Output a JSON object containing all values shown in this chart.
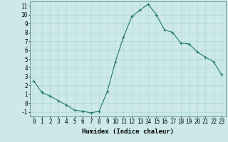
{
  "x": [
    0,
    1,
    2,
    3,
    4,
    5,
    6,
    7,
    8,
    9,
    10,
    11,
    12,
    13,
    14,
    15,
    16,
    17,
    18,
    19,
    20,
    21,
    22,
    23
  ],
  "y": [
    2.5,
    1.2,
    0.8,
    0.3,
    -0.2,
    -0.8,
    -0.9,
    -1.1,
    -0.9,
    1.3,
    4.7,
    7.5,
    9.8,
    10.5,
    11.2,
    10.0,
    8.3,
    8.0,
    6.8,
    6.7,
    5.8,
    5.2,
    4.7,
    3.2
  ],
  "xlabel": "Humidex (Indice chaleur)",
  "ylabel": "",
  "xlim": [
    -0.5,
    23.5
  ],
  "ylim": [
    -1.5,
    11.5
  ],
  "yticks": [
    -1,
    0,
    1,
    2,
    3,
    4,
    5,
    6,
    7,
    8,
    9,
    10,
    11
  ],
  "xticks": [
    0,
    1,
    2,
    3,
    4,
    5,
    6,
    7,
    8,
    9,
    10,
    11,
    12,
    13,
    14,
    15,
    16,
    17,
    18,
    19,
    20,
    21,
    22,
    23
  ],
  "line_color": "#1a7a6e",
  "marker": "+",
  "bg_color": "#cce8e8",
  "grid_color": "#aad4d4",
  "xlabel_fontsize": 6.5,
  "tick_fontsize": 5.5
}
